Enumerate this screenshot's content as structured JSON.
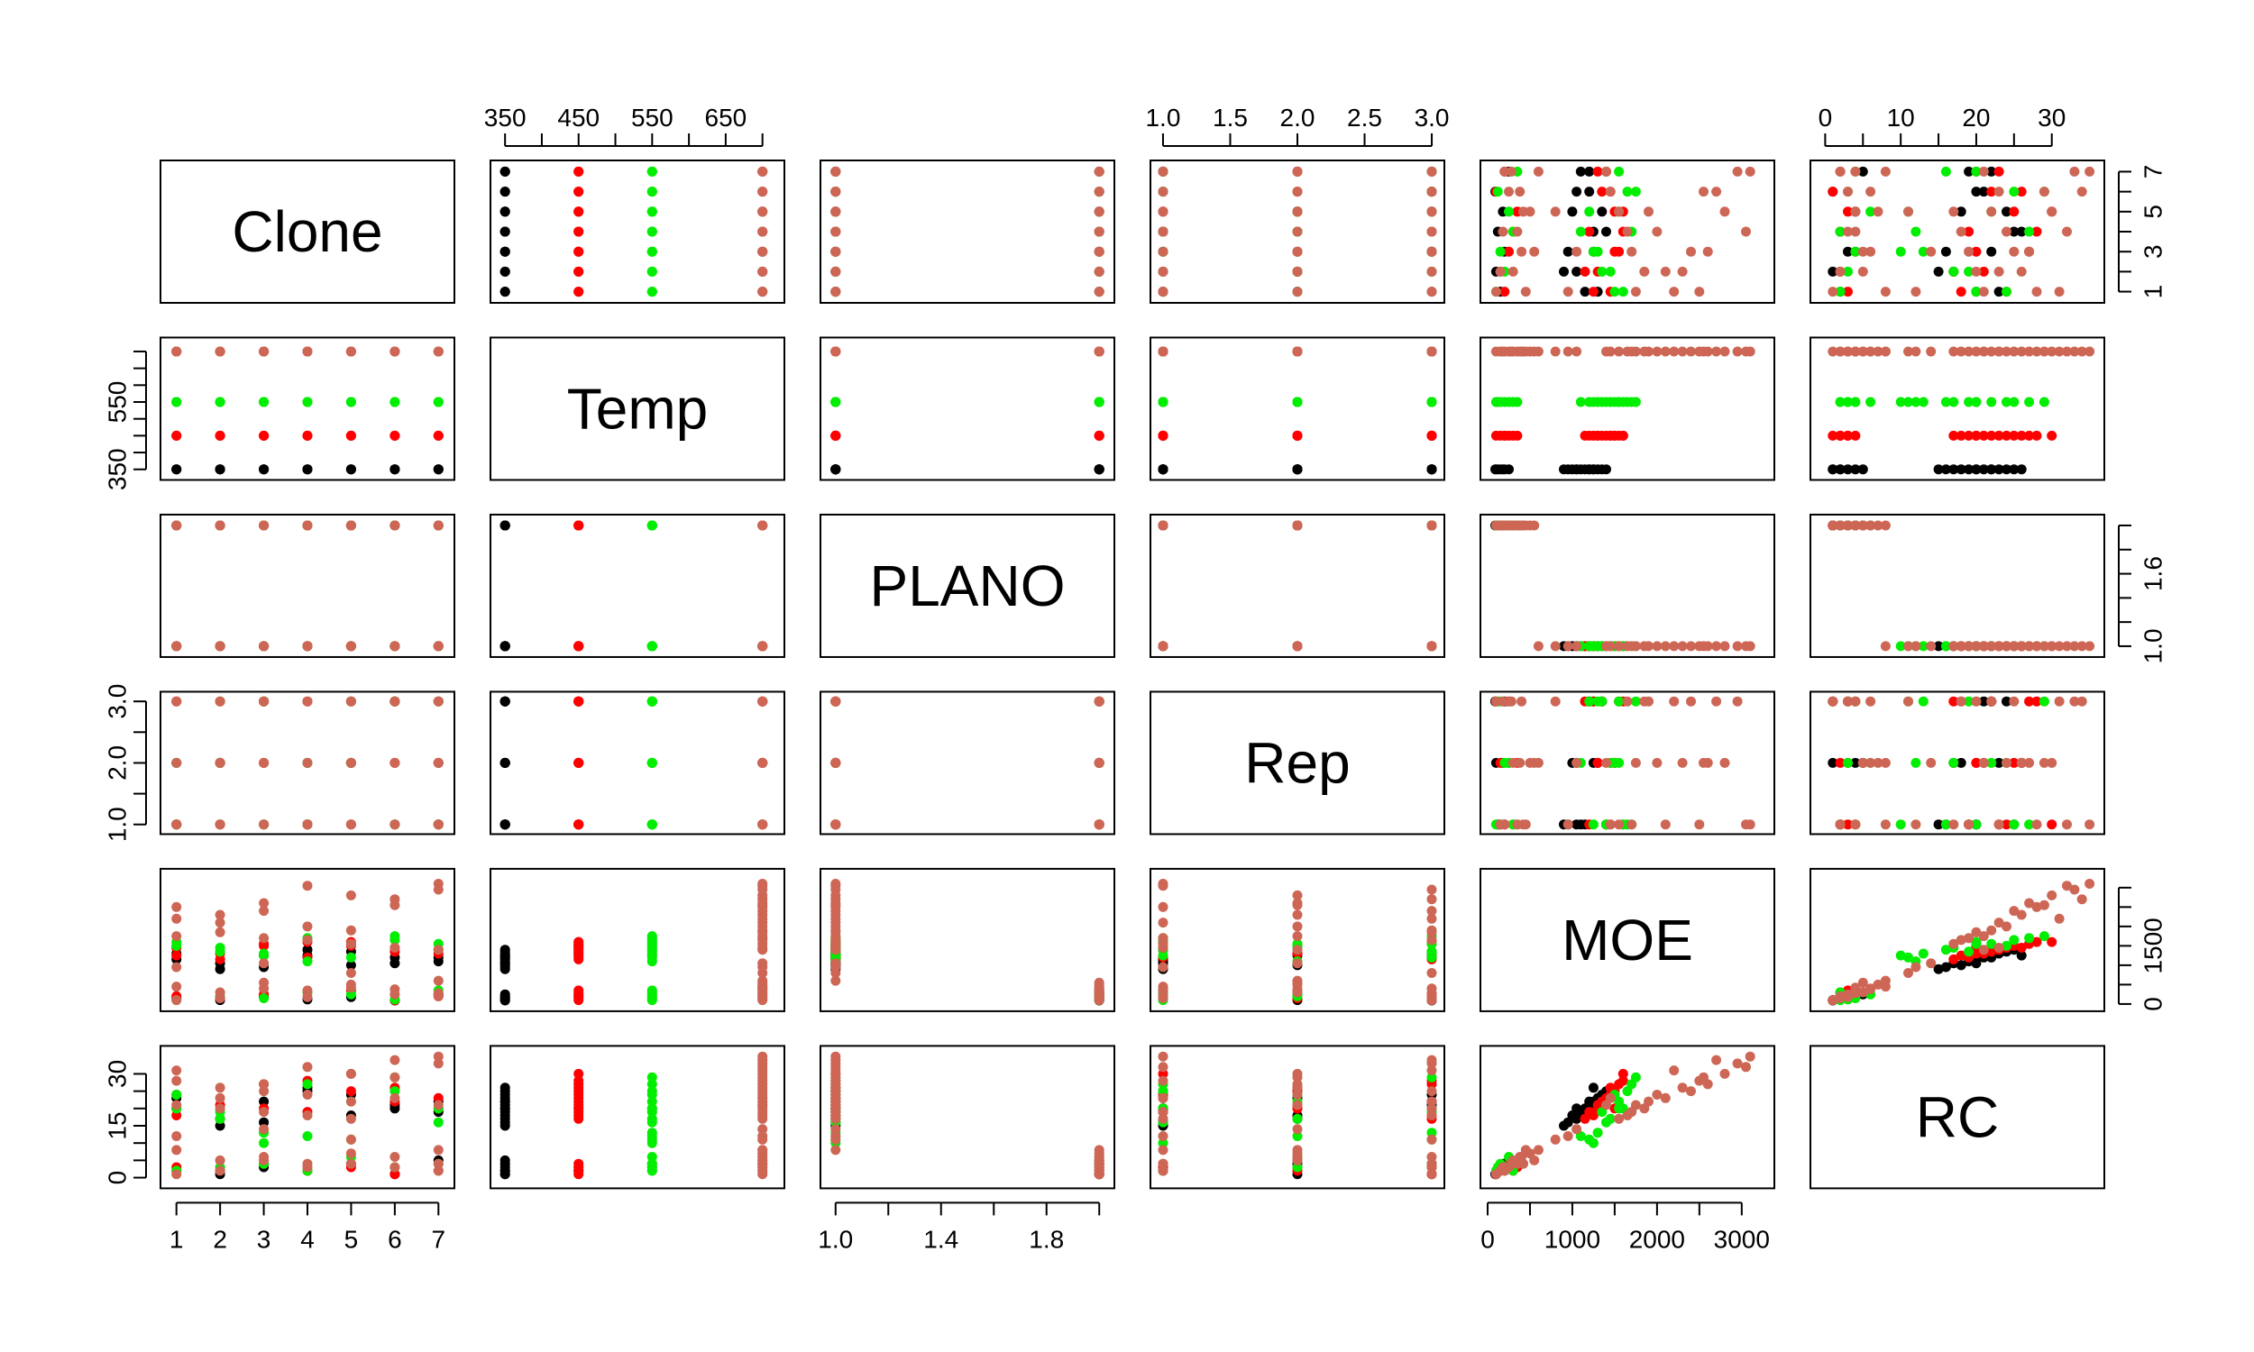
{
  "chart_data": {
    "type": "scatter",
    "variables": [
      "Clone",
      "Temp",
      "PLANO",
      "Rep",
      "MOE",
      "RC"
    ],
    "axes": {
      "Clone": {
        "range": [
          0.8,
          7.2
        ],
        "ticks": [
          1,
          2,
          3,
          4,
          5,
          6,
          7
        ],
        "tick_labels": [
          "1",
          "2",
          "3",
          "4",
          "5",
          "6",
          "7"
        ]
      },
      "Temp": {
        "range": [
          340,
          720
        ],
        "ticks": [
          350,
          400,
          450,
          500,
          550,
          600,
          650,
          700
        ],
        "tick_labels": [
          "350",
          "",
          "450",
          "",
          "550",
          "",
          "650",
          ""
        ]
      },
      "PLANO": {
        "range": [
          0.97,
          2.03
        ],
        "ticks": [
          1.0,
          1.2,
          1.4,
          1.6,
          1.8,
          2.0
        ],
        "tick_labels": [
          "1.0",
          "",
          "1.4",
          "",
          "1.8",
          ""
        ]
      },
      "Rep": {
        "range": [
          0.96,
          3.04
        ],
        "ticks": [
          1.0,
          1.5,
          2.0,
          2.5,
          3.0
        ],
        "tick_labels": [
          "1.0",
          "1.5",
          "2.0",
          "2.5",
          "3.0"
        ]
      },
      "MOE": {
        "range": [
          0,
          3300
        ],
        "ticks": [
          0,
          500,
          1000,
          1500,
          2000,
          2500,
          3000
        ],
        "tick_labels": [
          "0",
          "",
          "1000",
          "",
          "2000",
          "",
          "3000"
        ]
      },
      "RC": {
        "range": [
          -1,
          36
        ],
        "ticks": [
          0,
          5,
          10,
          15,
          20,
          25,
          30
        ],
        "tick_labels": [
          "0",
          "",
          "10",
          "",
          "20",
          "",
          "30"
        ]
      }
    },
    "y_tick_labels": {
      "Clone": [
        "1",
        "",
        "3",
        "",
        "5",
        "",
        "7"
      ],
      "Temp": [
        "350",
        "",
        "",
        "",
        "550",
        "",
        "",
        ""
      ],
      "PLANO": [
        "1.0",
        "",
        "",
        "1.6",
        "",
        ""
      ],
      "Rep": [
        "1.0",
        "",
        "2.0",
        "",
        "3.0"
      ],
      "MOE": [
        "0",
        "",
        "",
        "1500",
        "",
        "",
        ""
      ],
      "RC": [
        "0",
        "",
        "",
        "15",
        "",
        "",
        "30"
      ]
    },
    "axis_positions": {
      "top": [
        "Temp",
        "Rep",
        "RC"
      ],
      "bottom": [
        "Clone",
        "PLANO",
        "MOE"
      ],
      "left": [
        "Temp",
        "Rep",
        "RC"
      ],
      "right": [
        "Clone",
        "PLANO",
        "MOE"
      ]
    },
    "color_by": "Temp",
    "groups": [
      {
        "temp": 350,
        "color": "#000000"
      },
      {
        "temp": 450,
        "color": "#ff0000"
      },
      {
        "temp": 550,
        "color": "#00ee00"
      },
      {
        "temp": 700,
        "color": "#cd6655"
      }
    ],
    "point_symbol": "filled circle",
    "grid": false,
    "legend": "none",
    "columns": [
      "Clone",
      "Temp",
      "PLANO",
      "Rep",
      "MOE",
      "RC"
    ],
    "records": [
      [
        1,
        350,
        1,
        1,
        1150,
        20
      ],
      [
        2,
        350,
        1,
        2,
        1050,
        17
      ],
      [
        3,
        350,
        1,
        3,
        1250,
        22
      ],
      [
        4,
        350,
        1,
        1,
        1400,
        25
      ],
      [
        5,
        350,
        1,
        2,
        1000,
        18
      ],
      [
        6,
        350,
        1,
        3,
        1200,
        21
      ],
      [
        7,
        350,
        1,
        1,
        1100,
        19
      ],
      [
        1,
        350,
        1,
        2,
        1300,
        23
      ],
      [
        3,
        350,
        1,
        1,
        950,
        16
      ],
      [
        5,
        350,
        1,
        3,
        1350,
        24
      ],
      [
        6,
        350,
        1,
        1,
        1050,
        20
      ],
      [
        7,
        350,
        1,
        3,
        1200,
        22
      ],
      [
        2,
        350,
        1,
        1,
        900,
        15
      ],
      [
        4,
        350,
        1,
        2,
        1250,
        26
      ],
      [
        1,
        350,
        2,
        1,
        150,
        2
      ],
      [
        2,
        350,
        2,
        2,
        100,
        1
      ],
      [
        3,
        350,
        2,
        3,
        200,
        3
      ],
      [
        4,
        350,
        2,
        1,
        120,
        2
      ],
      [
        5,
        350,
        2,
        2,
        180,
        4
      ],
      [
        6,
        350,
        2,
        3,
        90,
        1
      ],
      [
        7,
        350,
        2,
        2,
        250,
        5
      ],
      [
        1,
        450,
        1,
        1,
        1450,
        24
      ],
      [
        2,
        450,
        1,
        2,
        1300,
        21
      ],
      [
        3,
        450,
        1,
        3,
        1550,
        27
      ],
      [
        4,
        450,
        1,
        1,
        1200,
        19
      ],
      [
        5,
        450,
        1,
        2,
        1500,
        25
      ],
      [
        6,
        450,
        1,
        3,
        1350,
        22
      ],
      [
        7,
        450,
        1,
        1,
        1400,
        23
      ],
      [
        1,
        450,
        1,
        3,
        1250,
        18
      ],
      [
        3,
        450,
        1,
        2,
        1500,
        20
      ],
      [
        5,
        450,
        1,
        1,
        1600,
        30
      ],
      [
        6,
        450,
        1,
        2,
        1450,
        26
      ],
      [
        2,
        450,
        1,
        3,
        1150,
        17
      ],
      [
        4,
        450,
        1,
        3,
        1600,
        28
      ],
      [
        7,
        450,
        1,
        2,
        1300,
        20
      ],
      [
        1,
        450,
        2,
        1,
        200,
        3
      ],
      [
        2,
        450,
        2,
        2,
        150,
        2
      ],
      [
        3,
        450,
        2,
        3,
        250,
        4
      ],
      [
        4,
        450,
        2,
        1,
        300,
        2
      ],
      [
        5,
        450,
        2,
        2,
        350,
        3
      ],
      [
        6,
        450,
        2,
        3,
        100,
        1
      ],
      [
        7,
        450,
        2,
        1,
        200,
        2
      ],
      [
        1,
        550,
        1,
        1,
        1600,
        20
      ],
      [
        2,
        550,
        1,
        2,
        1450,
        17
      ],
      [
        3,
        550,
        1,
        3,
        1300,
        13
      ],
      [
        4,
        550,
        1,
        1,
        1700,
        27
      ],
      [
        5,
        550,
        1,
        2,
        1550,
        22
      ],
      [
        6,
        550,
        1,
        3,
        1750,
        29
      ],
      [
        7,
        550,
        1,
        1,
        1400,
        16
      ],
      [
        1,
        550,
        1,
        2,
        1500,
        24
      ],
      [
        2,
        550,
        1,
        3,
        1350,
        19
      ],
      [
        3,
        550,
        1,
        1,
        1250,
        10
      ],
      [
        5,
        550,
        1,
        3,
        1200,
        11
      ],
      [
        6,
        550,
        1,
        1,
        1650,
        25
      ],
      [
        7,
        550,
        1,
        3,
        1550,
        20
      ],
      [
        4,
        550,
        1,
        2,
        1100,
        12
      ],
      [
        1,
        550,
        2,
        1,
        100,
        2
      ],
      [
        2,
        550,
        2,
        2,
        200,
        3
      ],
      [
        3,
        550,
        2,
        3,
        150,
        4
      ],
      [
        4,
        550,
        2,
        1,
        300,
        2
      ],
      [
        5,
        550,
        2,
        2,
        250,
        6
      ],
      [
        6,
        550,
        2,
        3,
        120,
        3
      ],
      [
        7,
        550,
        2,
        1,
        350,
        4
      ],
      [
        1,
        700,
        1,
        1,
        2500,
        28
      ],
      [
        2,
        700,
        1,
        2,
        2300,
        26
      ],
      [
        3,
        700,
        1,
        3,
        2400,
        25
      ],
      [
        4,
        700,
        1,
        1,
        3050,
        32
      ],
      [
        5,
        700,
        1,
        2,
        2800,
        30
      ],
      [
        6,
        700,
        1,
        3,
        2700,
        34
      ],
      [
        7,
        700,
        1,
        1,
        3100,
        35
      ],
      [
        1,
        700,
        1,
        3,
        2200,
        31
      ],
      [
        2,
        700,
        1,
        1,
        2100,
        23
      ],
      [
        3,
        700,
        1,
        2,
        2600,
        27
      ],
      [
        4,
        700,
        1,
        2,
        2000,
        24
      ],
      [
        5,
        700,
        1,
        3,
        1900,
        22
      ],
      [
        6,
        700,
        1,
        2,
        2550,
        29
      ],
      [
        7,
        700,
        1,
        3,
        2950,
        33
      ],
      [
        1,
        700,
        1,
        2,
        1750,
        21
      ],
      [
        2,
        700,
        1,
        3,
        1850,
        20
      ],
      [
        3,
        700,
        1,
        1,
        1700,
        19
      ],
      [
        4,
        700,
        1,
        3,
        1650,
        18
      ],
      [
        5,
        700,
        1,
        1,
        1550,
        17
      ],
      [
        6,
        700,
        1,
        1,
        1450,
        23
      ],
      [
        7,
        700,
        1,
        2,
        1400,
        21
      ],
      [
        1,
        700,
        1,
        1,
        950,
        12
      ],
      [
        3,
        700,
        1,
        2,
        1050,
        14
      ],
      [
        5,
        700,
        1,
        3,
        800,
        11
      ],
      [
        7,
        700,
        1,
        2,
        600,
        8
      ],
      [
        1,
        700,
        2,
        1,
        450,
        8
      ],
      [
        2,
        700,
        2,
        2,
        300,
        5
      ],
      [
        3,
        700,
        2,
        3,
        400,
        6
      ],
      [
        4,
        700,
        2,
        1,
        350,
        4
      ],
      [
        5,
        700,
        2,
        2,
        500,
        7
      ],
      [
        6,
        700,
        2,
        3,
        250,
        3
      ],
      [
        7,
        700,
        2,
        1,
        200,
        2
      ],
      [
        1,
        700,
        2,
        3,
        100,
        1
      ],
      [
        2,
        700,
        2,
        1,
        150,
        2
      ],
      [
        3,
        700,
        2,
        2,
        550,
        5
      ],
      [
        4,
        700,
        2,
        3,
        180,
        3
      ],
      [
        5,
        700,
        2,
        1,
        420,
        4
      ],
      [
        6,
        700,
        2,
        2,
        380,
        6
      ],
      [
        7,
        700,
        2,
        3,
        280,
        4
      ]
    ]
  }
}
